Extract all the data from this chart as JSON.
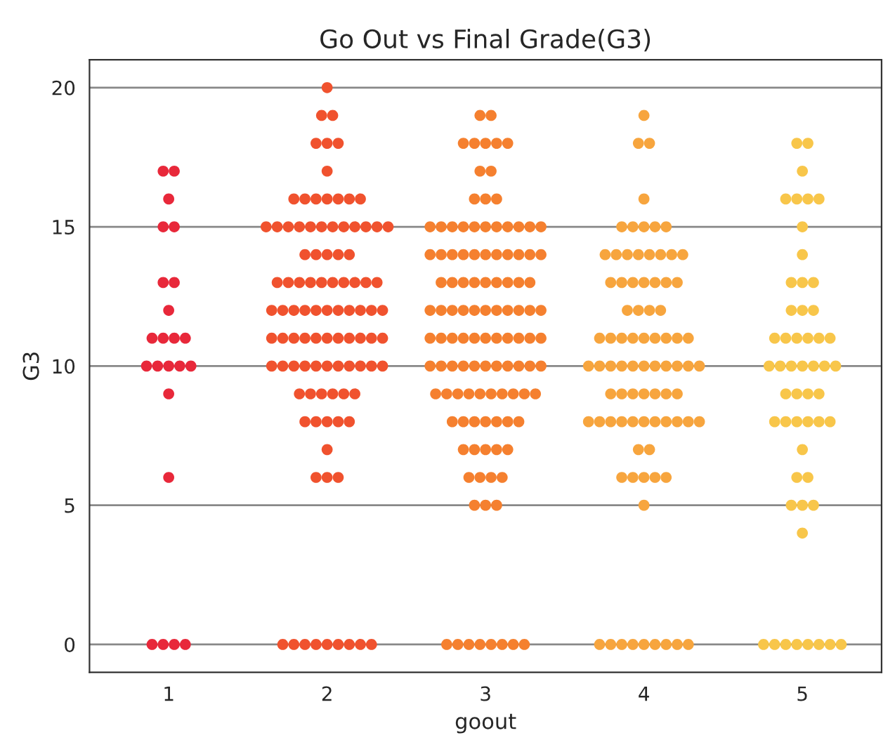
{
  "chart_data": {
    "type": "scatter",
    "title": "Go Out vs Final Grade(G3)",
    "xlabel": "goout",
    "ylabel": "G3",
    "categories": [
      "1",
      "2",
      "3",
      "4",
      "5"
    ],
    "ylim": [
      -1,
      21
    ],
    "yticks": [
      0,
      5,
      10,
      15,
      20
    ],
    "grid": "y",
    "marker": "circle",
    "series": [
      {
        "color": "#e8283a",
        "x": [
          "1",
          "1",
          "1",
          "1",
          "1",
          "1",
          "1",
          "1",
          "1",
          "1",
          "1",
          "1",
          "1",
          "1",
          "1",
          "1",
          "1",
          "1",
          "1",
          "1",
          "1",
          "1",
          "1"
        ],
        "values": [
          17,
          17,
          16,
          15,
          15,
          13,
          13,
          12,
          11,
          11,
          11,
          11,
          10,
          10,
          10,
          10,
          10,
          9,
          6,
          0,
          0,
          0,
          0
        ]
      },
      {
        "color": "#f0522e",
        "x": [
          "2",
          "2",
          "2",
          "2",
          "2",
          "2",
          "2",
          "2",
          "2",
          "2",
          "2",
          "2",
          "2",
          "2",
          "2",
          "2",
          "2",
          "2",
          "2",
          "2",
          "2",
          "2",
          "2",
          "2",
          "2",
          "2",
          "2",
          "2",
          "2",
          "2",
          "2",
          "2",
          "2",
          "2",
          "2",
          "2",
          "2",
          "2",
          "2",
          "2",
          "2",
          "2",
          "2",
          "2",
          "2",
          "2",
          "2",
          "2",
          "2",
          "2",
          "2",
          "2",
          "2",
          "2",
          "2",
          "2",
          "2",
          "2",
          "2",
          "2",
          "2",
          "2",
          "2",
          "2",
          "2",
          "2",
          "2",
          "2",
          "2",
          "2",
          "2",
          "2",
          "2",
          "2",
          "2",
          "2",
          "2",
          "2",
          "2",
          "2",
          "2",
          "2",
          "2",
          "2",
          "2",
          "2",
          "2",
          "2",
          "2",
          "2",
          "2",
          "2",
          "2",
          "2",
          "2",
          "2",
          "2",
          "2"
        ],
        "values": [
          20,
          19,
          19,
          18,
          18,
          18,
          17,
          16,
          16,
          16,
          16,
          16,
          16,
          16,
          15,
          15,
          15,
          15,
          15,
          15,
          15,
          15,
          15,
          15,
          15,
          15,
          14,
          14,
          14,
          14,
          14,
          13,
          13,
          13,
          13,
          13,
          13,
          13,
          13,
          13,
          13,
          12,
          12,
          12,
          12,
          12,
          12,
          12,
          12,
          12,
          12,
          12,
          11,
          11,
          11,
          11,
          11,
          11,
          11,
          11,
          11,
          11,
          11,
          10,
          10,
          10,
          10,
          10,
          10,
          10,
          10,
          10,
          10,
          10,
          9,
          9,
          9,
          9,
          9,
          9,
          8,
          8,
          8,
          8,
          8,
          7,
          6,
          6,
          6,
          0,
          0,
          0,
          0,
          0,
          0,
          0,
          0,
          0
        ]
      },
      {
        "color": "#f5802f",
        "x": [
          "3",
          "3",
          "3",
          "3",
          "3",
          "3",
          "3",
          "3",
          "3",
          "3",
          "3",
          "3",
          "3",
          "3",
          "3",
          "3",
          "3",
          "3",
          "3",
          "3",
          "3",
          "3",
          "3",
          "3",
          "3",
          "3",
          "3",
          "3",
          "3",
          "3",
          "3",
          "3",
          "3",
          "3",
          "3",
          "3",
          "3",
          "3",
          "3",
          "3",
          "3",
          "3",
          "3",
          "3",
          "3",
          "3",
          "3",
          "3",
          "3",
          "3",
          "3",
          "3",
          "3",
          "3",
          "3",
          "3",
          "3",
          "3",
          "3",
          "3",
          "3",
          "3",
          "3",
          "3",
          "3",
          "3",
          "3",
          "3",
          "3",
          "3",
          "3",
          "3",
          "3",
          "3",
          "3",
          "3",
          "3",
          "3",
          "3",
          "3",
          "3",
          "3",
          "3",
          "3",
          "3",
          "3",
          "3",
          "3",
          "3",
          "3",
          "3",
          "3",
          "3",
          "3",
          "3",
          "3",
          "3",
          "3",
          "3",
          "3",
          "3",
          "3",
          "3",
          "3",
          "3",
          "3",
          "3",
          "3",
          "3",
          "3",
          "3",
          "3",
          "3"
        ],
        "values": [
          19,
          19,
          18,
          18,
          18,
          18,
          18,
          17,
          17,
          16,
          16,
          16,
          15,
          15,
          15,
          15,
          15,
          15,
          15,
          15,
          15,
          15,
          15,
          14,
          14,
          14,
          14,
          14,
          14,
          14,
          14,
          14,
          14,
          14,
          13,
          13,
          13,
          13,
          13,
          13,
          13,
          13,
          13,
          12,
          12,
          12,
          12,
          12,
          12,
          12,
          12,
          12,
          12,
          12,
          11,
          11,
          11,
          11,
          11,
          11,
          11,
          11,
          11,
          11,
          11,
          10,
          10,
          10,
          10,
          10,
          10,
          10,
          10,
          10,
          10,
          10,
          9,
          9,
          9,
          9,
          9,
          9,
          9,
          9,
          9,
          9,
          8,
          8,
          8,
          8,
          8,
          8,
          8,
          7,
          7,
          7,
          7,
          7,
          6,
          6,
          6,
          6,
          5,
          5,
          5,
          0,
          0,
          0,
          0,
          0,
          0,
          0,
          0
        ]
      },
      {
        "color": "#f7a53e",
        "x": [
          "4",
          "4",
          "4",
          "4",
          "4",
          "4",
          "4",
          "4",
          "4",
          "4",
          "4",
          "4",
          "4",
          "4",
          "4",
          "4",
          "4",
          "4",
          "4",
          "4",
          "4",
          "4",
          "4",
          "4",
          "4",
          "4",
          "4",
          "4",
          "4",
          "4",
          "4",
          "4",
          "4",
          "4",
          "4",
          "4",
          "4",
          "4",
          "4",
          "4",
          "4",
          "4",
          "4",
          "4",
          "4",
          "4",
          "4",
          "4",
          "4",
          "4",
          "4",
          "4",
          "4",
          "4",
          "4",
          "4",
          "4",
          "4",
          "4",
          "4",
          "4",
          "4",
          "4",
          "4",
          "4",
          "4",
          "4",
          "4",
          "4",
          "4",
          "4",
          "4",
          "4",
          "4",
          "4",
          "4",
          "4",
          "4",
          "4",
          "4",
          "4",
          "4",
          "4"
        ],
        "values": [
          19,
          18,
          18,
          16,
          15,
          15,
          15,
          15,
          15,
          14,
          14,
          14,
          14,
          14,
          14,
          14,
          14,
          13,
          13,
          13,
          13,
          13,
          13,
          13,
          12,
          12,
          12,
          12,
          11,
          11,
          11,
          11,
          11,
          11,
          11,
          11,
          11,
          10,
          10,
          10,
          10,
          10,
          10,
          10,
          10,
          10,
          10,
          10,
          9,
          9,
          9,
          9,
          9,
          9,
          9,
          8,
          8,
          8,
          8,
          8,
          8,
          8,
          8,
          8,
          8,
          8,
          7,
          7,
          6,
          6,
          6,
          6,
          6,
          5,
          0,
          0,
          0,
          0,
          0,
          0,
          0,
          0,
          0
        ]
      },
      {
        "color": "#f8c64a",
        "x": [
          "5",
          "5",
          "5",
          "5",
          "5",
          "5",
          "5",
          "5",
          "5",
          "5",
          "5",
          "5",
          "5",
          "5",
          "5",
          "5",
          "5",
          "5",
          "5",
          "5",
          "5",
          "5",
          "5",
          "5",
          "5",
          "5",
          "5",
          "5",
          "5",
          "5",
          "5",
          "5",
          "5",
          "5",
          "5",
          "5",
          "5",
          "5",
          "5",
          "5",
          "5",
          "5",
          "5",
          "5",
          "5",
          "5",
          "5",
          "5",
          "5",
          "5",
          "5",
          "5",
          "5"
        ],
        "values": [
          18,
          18,
          17,
          16,
          16,
          16,
          16,
          15,
          14,
          13,
          13,
          13,
          12,
          12,
          12,
          11,
          11,
          11,
          11,
          11,
          11,
          10,
          10,
          10,
          10,
          10,
          10,
          10,
          9,
          9,
          9,
          9,
          8,
          8,
          8,
          8,
          8,
          8,
          7,
          6,
          6,
          5,
          5,
          5,
          4,
          0,
          0,
          0,
          0,
          0,
          0,
          0,
          0
        ]
      }
    ]
  }
}
